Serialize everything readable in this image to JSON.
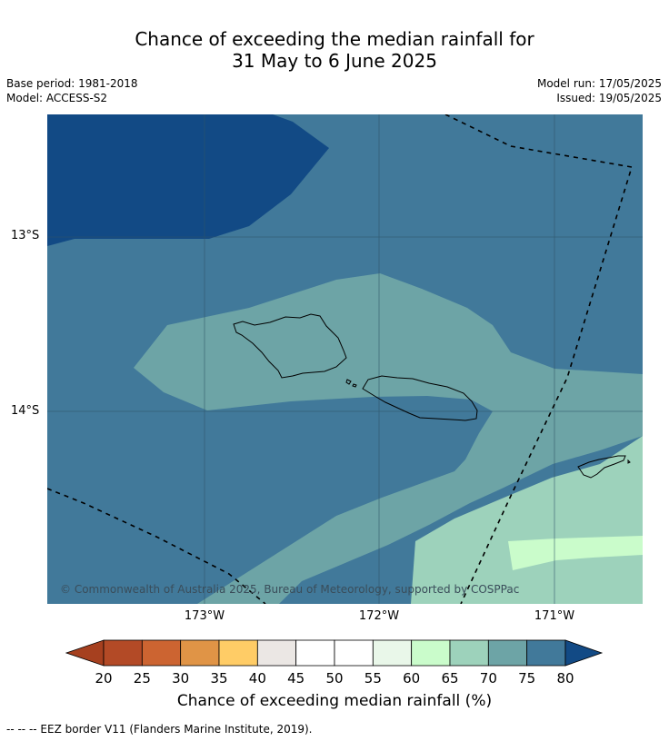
{
  "title": {
    "line1": "Chance of exceeding the median rainfall for",
    "line2": "31 May to 6 June 2025"
  },
  "meta": {
    "base_period": "Base period: 1981-2018",
    "model": "Model: ACCESS-S2",
    "model_run": "Model run: 17/05/2025",
    "issued": "Issued: 19/05/2025"
  },
  "map": {
    "lat_labels": [
      "13°S",
      "14°S"
    ],
    "lon_labels": [
      "173°W",
      "172°W",
      "171°W"
    ],
    "copyright": "© Commonwealth of Australia 2025, Bureau of Meteorology, supported by COSPPac",
    "colors": {
      "c80": "#124a85",
      "c75": "#41799a",
      "c70": "#6da4a6",
      "c65": "#9dd2bb",
      "c60": "#cafccb"
    }
  },
  "colorbar": {
    "ticks": [
      "20",
      "25",
      "30",
      "35",
      "40",
      "45",
      "50",
      "55",
      "60",
      "65",
      "70",
      "75",
      "80"
    ],
    "colors": [
      "#a6401f",
      "#b34a26",
      "#cc6431",
      "#e09446",
      "#ffcc66",
      "#ebe7e4",
      "#ffffff",
      "#ffffff",
      "#e9f7e9",
      "#cafccb",
      "#9dd2bb",
      "#6da4a6",
      "#41799a",
      "#124a85"
    ],
    "label": "Chance of exceeding median rainfall (%)"
  },
  "footnote": "--  --  -- EEZ border V11 (Flanders Marine Institute, 2019)."
}
